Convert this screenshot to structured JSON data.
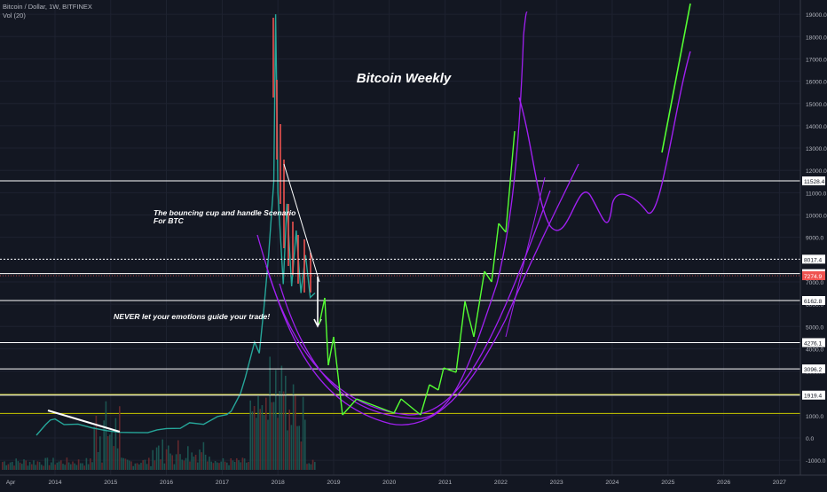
{
  "header": {
    "symbol": "Bitcoin / Dollar, 1W, BITFINEX",
    "indicator": "Vol (20)"
  },
  "chart_data": {
    "type": "line",
    "title": "Bitcoin Weekly",
    "xlabel": "",
    "ylabel": "",
    "x_ticks": [
      "Apr",
      "2014",
      "2015",
      "2016",
      "2017",
      "2018",
      "2019",
      "2020",
      "2021",
      "2022",
      "2023",
      "2024",
      "2025",
      "2026",
      "2027"
    ],
    "y_ticks": [
      -1000,
      0,
      1000,
      2000,
      3000,
      4000,
      5000,
      6000,
      7000,
      8000,
      9000,
      10000,
      11000,
      12000,
      13000,
      14000,
      15000,
      16000,
      17000,
      18000,
      19000
    ],
    "ylim": [
      -1500,
      19300
    ],
    "grid": true,
    "colors": {
      "background": "#131722",
      "price_line": "#26a69a",
      "candle_down": "#ef5350",
      "forecast_green": "#55ff33",
      "forecast_purple": "#a020f0",
      "horizontal_level": "#ffffff",
      "volume_zone": "#c8c800",
      "last_price_badge": "#ef5350"
    },
    "series": [
      {
        "values": [
          [
            "2013-09",
            120
          ],
          [
            "2013-11",
            600
          ],
          [
            "2013-12",
            800
          ],
          [
            "2014-01",
            850
          ],
          [
            "2014-03",
            600
          ],
          [
            "2014-06",
            620
          ],
          [
            "2014-09",
            450
          ],
          [
            "2014-12",
            330
          ],
          [
            "2015-03",
            250
          ],
          [
            "2015-06",
            240
          ],
          [
            "2015-09",
            235
          ],
          [
            "2015-11",
            360
          ],
          [
            "2016-01",
            420
          ],
          [
            "2016-04",
            430
          ],
          [
            "2016-06",
            680
          ],
          [
            "2016-09",
            610
          ],
          [
            "2016-12",
            960
          ],
          [
            "2017-02",
            1050
          ],
          [
            "2017-03",
            1200
          ],
          [
            "2017-05",
            2000
          ],
          [
            "2017-06",
            2700
          ],
          [
            "2017-08",
            4300
          ],
          [
            "2017-09",
            3800
          ],
          [
            "2017-10",
            5800
          ],
          [
            "2017-11",
            8200
          ],
          [
            "2017-12-05",
            11500
          ],
          [
            "2017-12-17",
            19000
          ],
          [
            "2017-12-27",
            14000
          ],
          [
            "2018-01",
            11000
          ],
          [
            "2018-02-05",
            6900
          ],
          [
            "2018-03",
            10500
          ],
          [
            "2018-04",
            6800
          ],
          [
            "2018-05",
            9300
          ],
          [
            "2018-06",
            6500
          ],
          [
            "2018-07",
            8200
          ],
          [
            "2018-08",
            6300
          ],
          [
            "2018-09",
            6500
          ]
        ]
      }
    ],
    "levels": [
      {
        "label": "11528.4",
        "value": 11528.4,
        "style": "solid"
      },
      {
        "label": "8017.4",
        "value": 8017.4,
        "style": "dotted"
      },
      {
        "label": "7370.4",
        "value": 7370.4,
        "style": "solid"
      },
      {
        "label": "6162.8",
        "value": 6162.8,
        "style": "solid"
      },
      {
        "label": "4276.1",
        "value": 4276.1,
        "style": "solid"
      },
      {
        "label": "3096.2",
        "value": 3096.2,
        "style": "solid"
      },
      {
        "label": "1919.4",
        "value": 1919.4,
        "style": "solid"
      }
    ],
    "last_price": {
      "label": "7274.9",
      "value": 7274.9
    },
    "support_zone": {
      "low": 1100,
      "high": 1950
    },
    "annotations": [
      {
        "text": "The bouncing cup and handle Scenario",
        "line2": "For BTC"
      },
      {
        "text": "NEVER let your emotions guide your trade!"
      }
    ]
  }
}
